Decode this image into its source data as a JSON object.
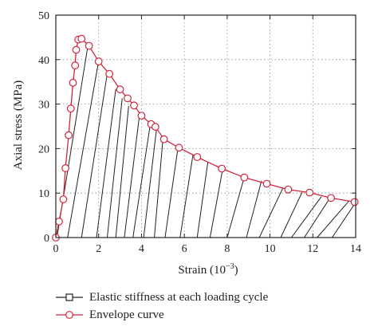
{
  "chart_data": {
    "type": "line",
    "xlabel": "Strain (10",
    "xlabel_sup": "−3",
    "xlabel_close": ")",
    "ylabel": "Axial stress (MPa)",
    "xlim": [
      0,
      14
    ],
    "ylim": [
      0,
      50
    ],
    "x_ticks": [
      0,
      2,
      4,
      6,
      8,
      10,
      12,
      14
    ],
    "y_ticks": [
      0,
      10,
      20,
      30,
      40,
      50
    ],
    "grid": true,
    "legend_placement": "bottom",
    "series": [
      {
        "name": "Elastic stiffness at each loading cycle",
        "color": "#222222",
        "marker": "square-open",
        "segments": [
          {
            "x": [
              0.05,
              1.5
            ],
            "y": [
              0,
              43.2
            ]
          },
          {
            "x": [
              0.55,
              2.0
            ],
            "y": [
              0,
              39.7
            ]
          },
          {
            "x": [
              1.2,
              2.4
            ],
            "y": [
              0,
              36.8
            ]
          },
          {
            "x": [
              1.9,
              2.8
            ],
            "y": [
              0,
              33.4
            ]
          },
          {
            "x": [
              2.4,
              3.1
            ],
            "y": [
              0,
              31.3
            ]
          },
          {
            "x": [
              2.8,
              3.4
            ],
            "y": [
              0,
              29.6
            ]
          },
          {
            "x": [
              3.2,
              3.9
            ],
            "y": [
              0,
              27.3
            ]
          },
          {
            "x": [
              3.6,
              4.4
            ],
            "y": [
              0,
              25.1
            ]
          },
          {
            "x": [
              4.1,
              4.7
            ],
            "y": [
              0,
              24.3
            ]
          },
          {
            "x": [
              4.6,
              5.0
            ],
            "y": [
              0,
              22.1
            ]
          },
          {
            "x": [
              5.1,
              5.7
            ],
            "y": [
              0,
              20.1
            ]
          },
          {
            "x": [
              5.8,
              6.4
            ],
            "y": [
              0,
              18.5
            ]
          },
          {
            "x": [
              6.6,
              7.1
            ],
            "y": [
              0,
              17.0
            ]
          },
          {
            "x": [
              7.2,
              7.8
            ],
            "y": [
              0,
              15.6
            ]
          },
          {
            "x": [
              8.0,
              8.8
            ],
            "y": [
              0,
              13.6
            ]
          },
          {
            "x": [
              8.9,
              9.6
            ],
            "y": [
              0,
              12.7
            ]
          },
          {
            "x": [
              9.5,
              10.6
            ],
            "y": [
              0,
              11.1
            ]
          },
          {
            "x": [
              10.5,
              11.5
            ],
            "y": [
              0,
              10.2
            ]
          },
          {
            "x": [
              11.0,
              12.4
            ],
            "y": [
              0,
              9.2
            ]
          },
          {
            "x": [
              11.6,
              12.8
            ],
            "y": [
              0,
              8.9
            ]
          },
          {
            "x": [
              12.2,
              13.7
            ],
            "y": [
              0,
              8.3
            ]
          },
          {
            "x": [
              12.9,
              14.0
            ],
            "y": [
              0,
              7.9
            ]
          }
        ]
      },
      {
        "name": "Envelope curve",
        "color": "#d0253c",
        "marker": "circle-open",
        "x": [
          0.0,
          0.15,
          0.35,
          0.45,
          0.6,
          0.7,
          0.8,
          0.9,
          0.95,
          1.05,
          1.2,
          1.55,
          2.0,
          2.5,
          3.0,
          3.35,
          3.65,
          4.0,
          4.45,
          4.65,
          5.05,
          5.75,
          6.6,
          7.75,
          8.8,
          9.85,
          10.85,
          11.85,
          12.85,
          13.95
        ],
        "y": [
          0,
          3.6,
          8.6,
          15.6,
          23.0,
          29.0,
          34.8,
          38.7,
          42.2,
          44.5,
          44.7,
          43.1,
          39.6,
          36.8,
          33.3,
          31.3,
          29.7,
          27.4,
          25.5,
          24.9,
          22.1,
          20.2,
          18.1,
          15.5,
          13.5,
          12.1,
          10.8,
          10.1,
          8.9,
          8.0
        ]
      }
    ]
  }
}
